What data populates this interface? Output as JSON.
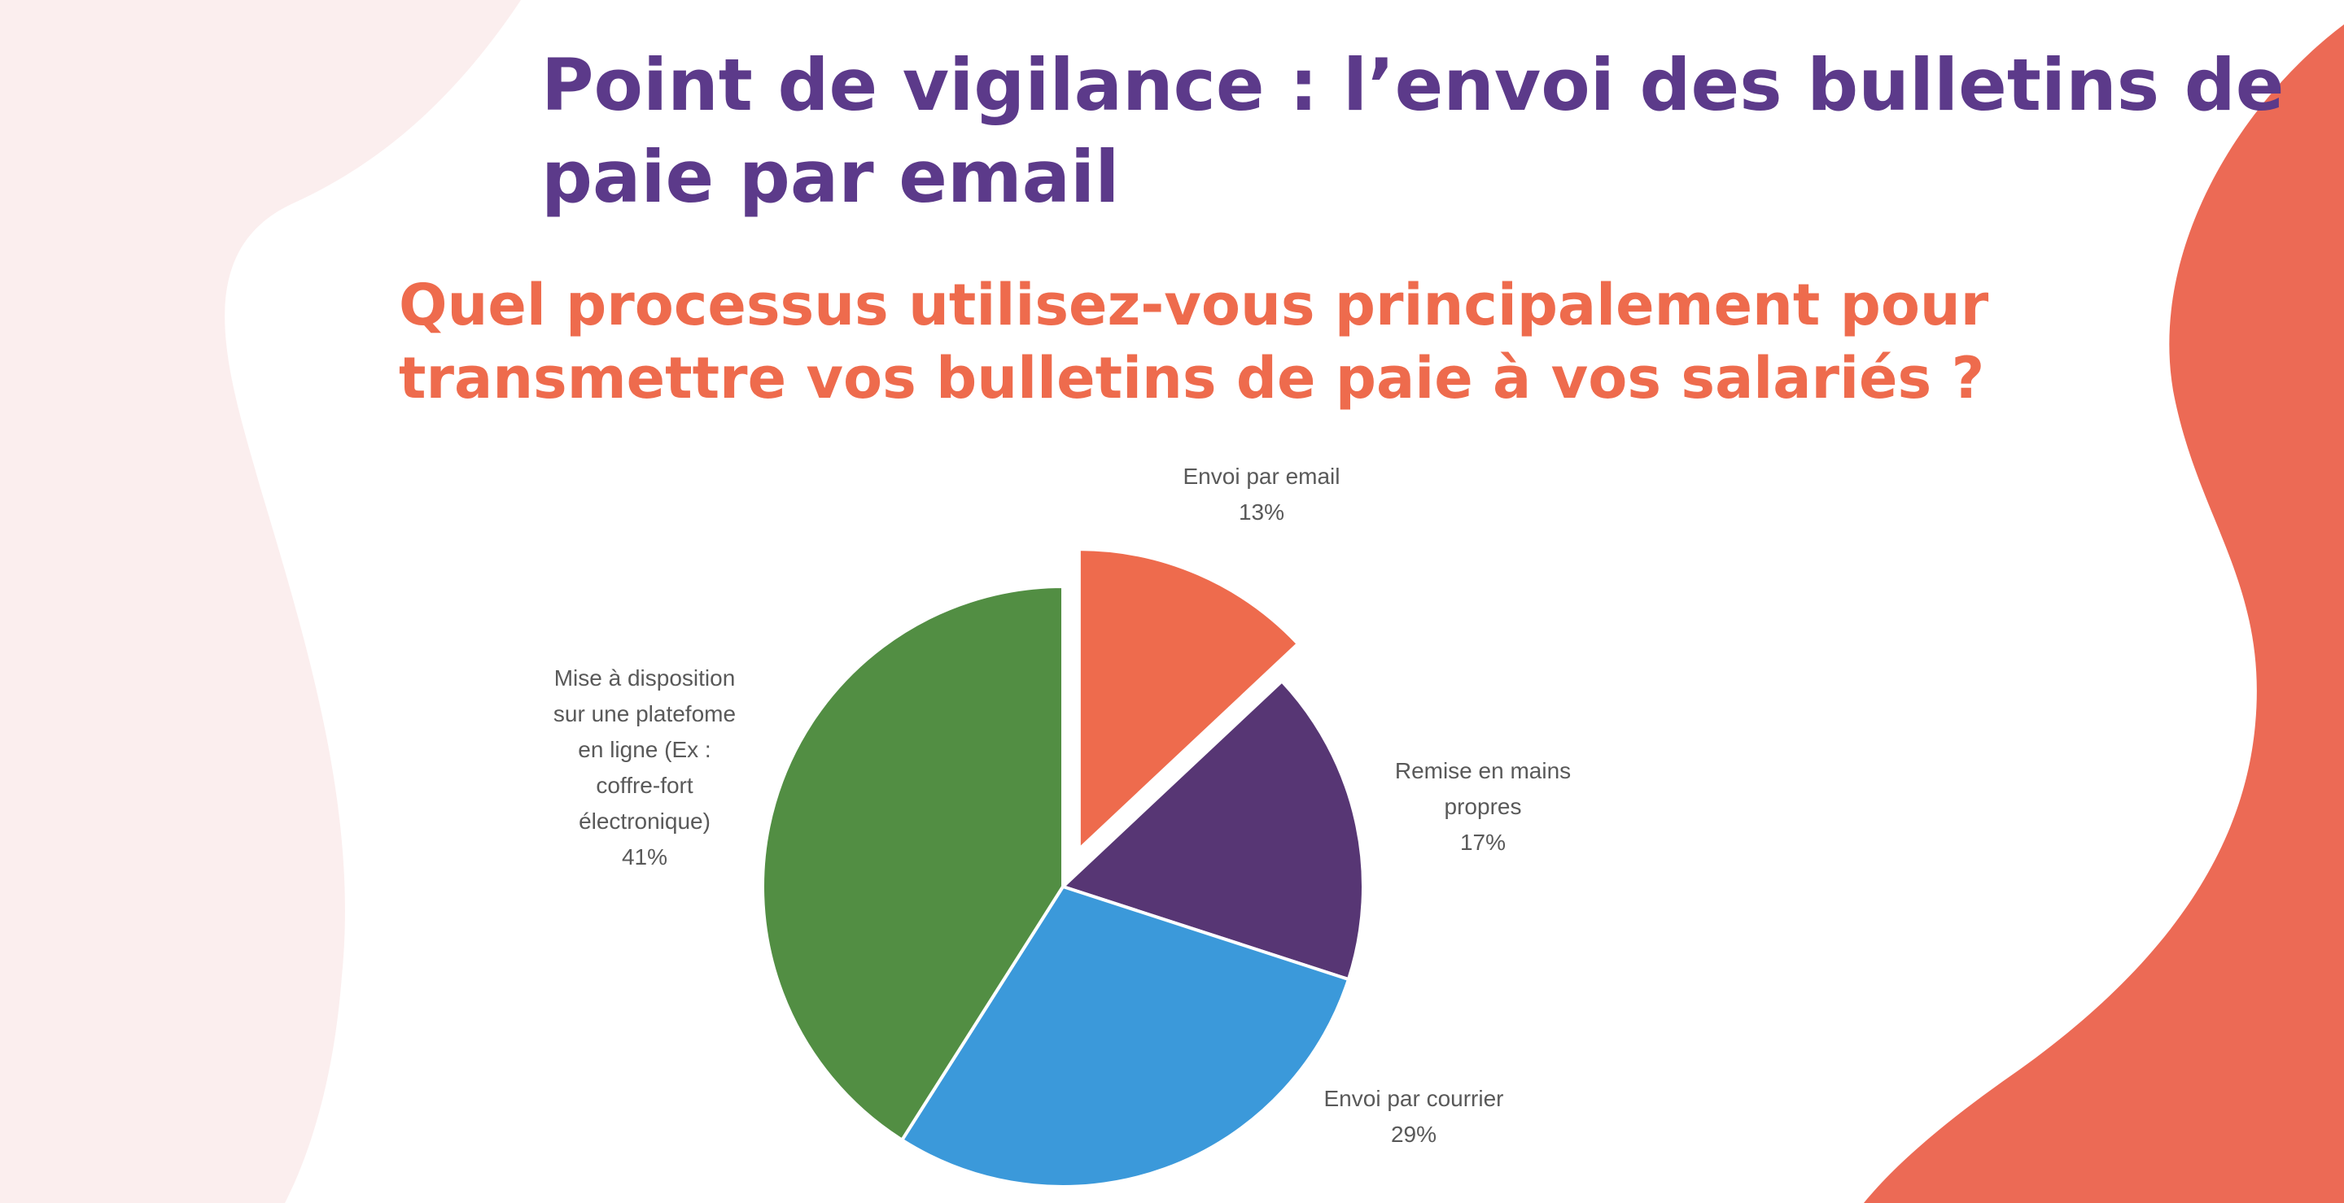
{
  "slide": {
    "title_lines": [
      "Point de vigilance : l’envoi des bulletins de",
      "paie par email"
    ],
    "question_lines": [
      "Quel processus utilisez-vous principalement pour",
      "transmettre vos bulletins de paie à vos salariés ?"
    ]
  },
  "colors": {
    "title": "#5c3a8a",
    "question": "#ee6b4d",
    "blob_left": "#fbeeee",
    "blob_right": "#ec6a55"
  },
  "chart_data": {
    "type": "pie",
    "exploded": "Envoi par email",
    "slices": [
      {
        "label_lines": [
          "Envoi par email"
        ],
        "pct_text": "13%",
        "value": 13,
        "color": "#ee6b4d"
      },
      {
        "label_lines": [
          "Remise en mains",
          "propres"
        ],
        "pct_text": "17%",
        "value": 17,
        "color": "#573674"
      },
      {
        "label_lines": [
          "Envoi par courrier"
        ],
        "pct_text": "29%",
        "value": 29,
        "color": "#3b99da"
      },
      {
        "label_lines": [
          "Mise à disposition",
          "sur une platefome",
          "en ligne (Ex :",
          "coffre-fort",
          "électronique)"
        ],
        "pct_text": "41%",
        "value": 41,
        "color": "#528e43"
      }
    ]
  }
}
